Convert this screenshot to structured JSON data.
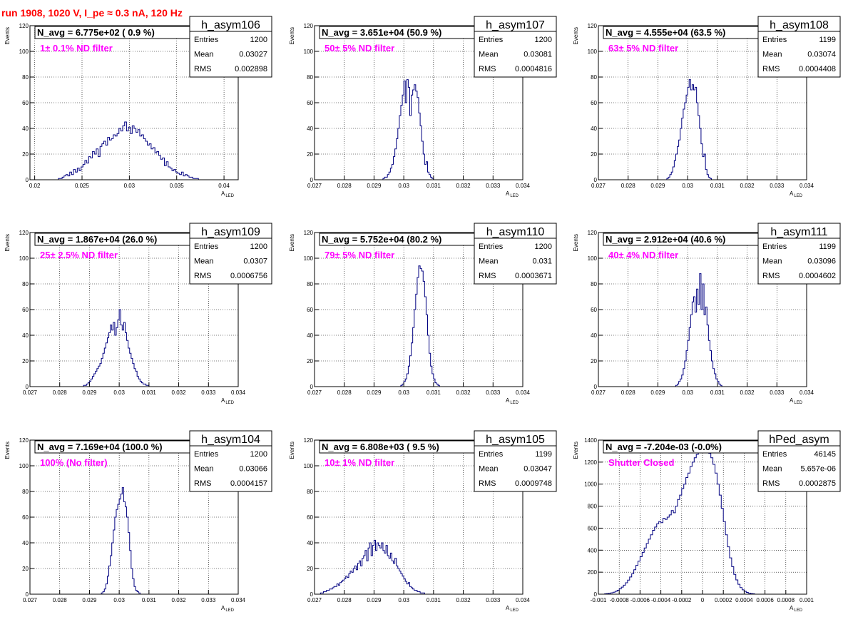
{
  "run_title": "run 1908,  1020 V, I_pe ≈ 0.3 nA, 120 Hz",
  "colors": {
    "title": "#ff0000",
    "annotation": "#ff00ff",
    "histogram": "#000080",
    "grid": "#000000"
  },
  "chart_data": [
    {
      "type": "histogram",
      "name": "h_asym106",
      "header": "N_avg = 6.775e+02 ( 0.9 %)",
      "annotation": "1± 0.1% ND filter",
      "stats": [
        [
          "Entries",
          "1200"
        ],
        [
          "Mean",
          "0.03027"
        ],
        [
          "RMS",
          "0.002898"
        ]
      ],
      "ylabel": "Events",
      "xlabel_main": "A",
      "xlabel_sub": "LED",
      "xlim": [
        0.0195,
        0.0415
      ],
      "ylim": [
        0,
        120
      ],
      "xticks": [
        0.02,
        0.025,
        0.03,
        0.035,
        0.04
      ],
      "xticklabels": [
        "0.02",
        "0.025",
        "0.03",
        "0.035",
        "0.04"
      ],
      "yticks": [
        0,
        20,
        40,
        60,
        80,
        100,
        120
      ],
      "yticklabels": [
        "0",
        "20",
        "40",
        "60",
        "80",
        "100",
        "120"
      ],
      "grid": true,
      "bins_start": 0.0225,
      "bin_width": 0.0002,
      "counts": [
        1,
        1,
        2,
        3,
        4,
        3,
        6,
        4,
        8,
        6,
        9,
        7,
        10,
        12,
        15,
        13,
        18,
        17,
        22,
        20,
        24,
        18,
        26,
        28,
        30,
        27,
        33,
        31,
        32,
        35,
        34,
        36,
        40,
        38,
        42,
        45,
        38,
        41,
        36,
        42,
        40,
        37,
        39,
        34,
        35,
        32,
        30,
        27,
        28,
        24,
        25,
        21,
        22,
        19,
        16,
        17,
        11,
        14,
        10,
        9,
        7,
        8,
        6,
        5,
        4,
        6,
        3,
        4,
        3,
        2,
        2,
        1,
        1,
        1
      ]
    },
    {
      "type": "histogram",
      "name": "h_asym107",
      "header": "N_avg = 3.651e+04 (50.9 %)",
      "annotation": "50± 5% ND filter",
      "stats": [
        [
          "Entries",
          "1200"
        ],
        [
          "Mean",
          "0.03081"
        ],
        [
          "RMS",
          "0.0004816"
        ]
      ],
      "ylabel": "Events",
      "xlabel_main": "A",
      "xlabel_sub": "LED",
      "xlim": [
        0.027,
        0.034
      ],
      "ylim": [
        0,
        120
      ],
      "xticks": [
        0.027,
        0.028,
        0.029,
        0.03,
        0.031,
        0.032,
        0.033,
        0.034
      ],
      "xticklabels": [
        "0.027",
        "0.028",
        "0.029",
        "0.03",
        "0.031",
        "0.032",
        "0.033",
        "0.034"
      ],
      "yticks": [
        0,
        20,
        40,
        60,
        80,
        100,
        120
      ],
      "yticklabels": [
        "0",
        "20",
        "40",
        "60",
        "80",
        "100",
        "120"
      ],
      "grid": true,
      "bins_start": 0.0293,
      "bin_width": 5e-05,
      "counts": [
        1,
        2,
        2,
        4,
        6,
        9,
        12,
        18,
        24,
        32,
        40,
        50,
        58,
        66,
        77,
        60,
        78,
        72,
        50,
        66,
        70,
        74,
        69,
        64,
        52,
        42,
        30,
        20,
        12,
        14,
        6,
        4,
        2,
        1
      ]
    },
    {
      "type": "histogram",
      "name": "h_asym108",
      "header": "N_avg = 4.555e+04 (63.5 %)",
      "annotation": "63± 5% ND filter",
      "stats": [
        [
          "Entries",
          "1199"
        ],
        [
          "Mean",
          "0.03074"
        ],
        [
          "RMS",
          "0.0004408"
        ]
      ],
      "ylabel": "Events",
      "xlabel_main": "A",
      "xlabel_sub": "LED",
      "xlim": [
        0.027,
        0.034
      ],
      "ylim": [
        0,
        120
      ],
      "xticks": [
        0.027,
        0.028,
        0.029,
        0.03,
        0.031,
        0.032,
        0.033,
        0.034
      ],
      "xticklabels": [
        "0.027",
        "0.028",
        "0.029",
        "0.03",
        "0.031",
        "0.032",
        "0.033",
        "0.034"
      ],
      "yticks": [
        0,
        20,
        40,
        60,
        80,
        100,
        120
      ],
      "yticklabels": [
        "0",
        "20",
        "40",
        "60",
        "80",
        "100",
        "120"
      ],
      "grid": true,
      "bins_start": 0.0293,
      "bin_width": 5e-05,
      "counts": [
        1,
        2,
        4,
        6,
        10,
        15,
        20,
        26,
        31,
        40,
        48,
        55,
        60,
        66,
        72,
        78,
        70,
        74,
        70,
        72,
        60,
        50,
        40,
        28,
        18,
        20,
        8,
        4,
        2,
        1
      ]
    },
    {
      "type": "histogram",
      "name": "h_asym109",
      "header": "N_avg = 1.867e+04 (26.0 %)",
      "annotation": "25± 2.5% ND filter",
      "stats": [
        [
          "Entries",
          "1200"
        ],
        [
          "Mean",
          "0.0307"
        ],
        [
          "RMS",
          "0.0006756"
        ]
      ],
      "ylabel": "Events",
      "xlabel_main": "A",
      "xlabel_sub": "LED",
      "xlim": [
        0.027,
        0.034
      ],
      "ylim": [
        0,
        120
      ],
      "xticks": [
        0.027,
        0.028,
        0.029,
        0.03,
        0.031,
        0.032,
        0.033,
        0.034
      ],
      "xticklabels": [
        "0.027",
        "0.028",
        "0.029",
        "0.03",
        "0.031",
        "0.032",
        "0.033",
        "0.034"
      ],
      "yticks": [
        0,
        20,
        40,
        60,
        80,
        100,
        120
      ],
      "yticklabels": [
        "0",
        "20",
        "40",
        "60",
        "80",
        "100",
        "120"
      ],
      "grid": true,
      "bins_start": 0.0288,
      "bin_width": 5e-05,
      "counts": [
        1,
        1,
        2,
        3,
        4,
        6,
        8,
        10,
        12,
        14,
        16,
        18,
        22,
        26,
        30,
        34,
        38,
        42,
        48,
        44,
        50,
        40,
        46,
        52,
        60,
        48,
        44,
        50,
        42,
        36,
        30,
        26,
        22,
        18,
        14,
        12,
        8,
        6,
        4,
        3,
        2,
        2,
        1,
        1
      ]
    },
    {
      "type": "histogram",
      "name": "h_asym110",
      "header": "N_avg = 5.752e+04 (80.2 %)",
      "annotation": "79± 5% ND filter",
      "stats": [
        [
          "Entries",
          "1200"
        ],
        [
          "Mean",
          "0.031"
        ],
        [
          "RMS",
          "0.0003671"
        ]
      ],
      "ylabel": "Events",
      "xlabel_main": "A",
      "xlabel_sub": "LED",
      "xlim": [
        0.027,
        0.034
      ],
      "ylim": [
        0,
        120
      ],
      "xticks": [
        0.027,
        0.028,
        0.029,
        0.03,
        0.031,
        0.032,
        0.033,
        0.034
      ],
      "xticklabels": [
        "0.027",
        "0.028",
        "0.029",
        "0.03",
        "0.031",
        "0.032",
        "0.033",
        "0.034"
      ],
      "yticks": [
        0,
        20,
        40,
        60,
        80,
        100,
        120
      ],
      "yticklabels": [
        "0",
        "20",
        "40",
        "60",
        "80",
        "100",
        "120"
      ],
      "grid": true,
      "bins_start": 0.0299,
      "bin_width": 5e-05,
      "counts": [
        1,
        2,
        4,
        6,
        10,
        16,
        24,
        34,
        46,
        60,
        72,
        85,
        94,
        92,
        90,
        82,
        70,
        56,
        40,
        26,
        16,
        10,
        6,
        3,
        2,
        1
      ]
    },
    {
      "type": "histogram",
      "name": "h_asym111",
      "header": "N_avg = 2.912e+04 (40.6 %)",
      "annotation": "40± 4% ND filter",
      "stats": [
        [
          "Entries",
          "1199"
        ],
        [
          "Mean",
          "0.03096"
        ],
        [
          "RMS",
          "0.0004602"
        ]
      ],
      "ylabel": "Events",
      "xlabel_main": "A",
      "xlabel_sub": "LED",
      "xlim": [
        0.027,
        0.034
      ],
      "ylim": [
        0,
        120
      ],
      "xticks": [
        0.027,
        0.028,
        0.029,
        0.03,
        0.031,
        0.032,
        0.033,
        0.034
      ],
      "xticklabels": [
        "0.027",
        "0.028",
        "0.029",
        "0.03",
        "0.031",
        "0.032",
        "0.033",
        "0.034"
      ],
      "yticks": [
        0,
        20,
        40,
        60,
        80,
        100,
        120
      ],
      "yticklabels": [
        "0",
        "20",
        "40",
        "60",
        "80",
        "100",
        "120"
      ],
      "grid": true,
      "bins_start": 0.0296,
      "bin_width": 5e-05,
      "counts": [
        1,
        2,
        4,
        6,
        9,
        14,
        20,
        28,
        36,
        46,
        56,
        66,
        70,
        58,
        76,
        64,
        88,
        60,
        80,
        56,
        62,
        48,
        36,
        28,
        20,
        14,
        10,
        6,
        4,
        2,
        1
      ]
    },
    {
      "type": "histogram",
      "name": "h_asym104",
      "header": "N_avg = 7.169e+04 (100.0 %)",
      "annotation": "100% (No filter)",
      "stats": [
        [
          "Entries",
          "1200"
        ],
        [
          "Mean",
          "0.03066"
        ],
        [
          "RMS",
          "0.0004157"
        ]
      ],
      "ylabel": "Events",
      "xlabel_main": "A",
      "xlabel_sub": "LED",
      "xlim": [
        0.027,
        0.034
      ],
      "ylim": [
        0,
        120
      ],
      "xticks": [
        0.027,
        0.028,
        0.029,
        0.03,
        0.031,
        0.032,
        0.033,
        0.034
      ],
      "xticklabels": [
        "0.027",
        "0.028",
        "0.029",
        "0.03",
        "0.031",
        "0.032",
        "0.033",
        "0.034"
      ],
      "yticks": [
        0,
        20,
        40,
        60,
        80,
        100,
        120
      ],
      "yticklabels": [
        "0",
        "20",
        "40",
        "60",
        "80",
        "100",
        "120"
      ],
      "grid": true,
      "bins_start": 0.0294,
      "bin_width": 5e-05,
      "counts": [
        1,
        2,
        4,
        8,
        14,
        22,
        30,
        40,
        50,
        60,
        66,
        70,
        74,
        78,
        83,
        72,
        68,
        60,
        48,
        34,
        20,
        12,
        6,
        3,
        2,
        1
      ]
    },
    {
      "type": "histogram",
      "name": "h_asym105",
      "header": "N_avg = 6.808e+03 ( 9.5 %)",
      "annotation": "10± 1% ND filter",
      "stats": [
        [
          "Entries",
          "1199"
        ],
        [
          "Mean",
          "0.03047"
        ],
        [
          "RMS",
          "0.0009748"
        ]
      ],
      "ylabel": "Events",
      "xlabel_main": "A",
      "xlabel_sub": "LED",
      "xlim": [
        0.027,
        0.034
      ],
      "ylim": [
        0,
        120
      ],
      "xticks": [
        0.027,
        0.028,
        0.029,
        0.03,
        0.031,
        0.032,
        0.033,
        0.034
      ],
      "xticklabels": [
        "0.027",
        "0.028",
        "0.029",
        "0.03",
        "0.031",
        "0.032",
        "0.033",
        "0.034"
      ],
      "yticks": [
        0,
        20,
        40,
        60,
        80,
        100,
        120
      ],
      "yticklabels": [
        "0",
        "20",
        "40",
        "60",
        "80",
        "100",
        "120"
      ],
      "grid": true,
      "bins_start": 0.0272,
      "bin_width": 5e-05,
      "counts": [
        1,
        1,
        2,
        2,
        3,
        3,
        4,
        4,
        5,
        6,
        6,
        8,
        7,
        9,
        10,
        11,
        12,
        14,
        13,
        16,
        18,
        17,
        20,
        22,
        19,
        24,
        26,
        22,
        28,
        30,
        34,
        26,
        36,
        40,
        30,
        38,
        42,
        34,
        40,
        38,
        36,
        40,
        34,
        32,
        38,
        30,
        28,
        32,
        26,
        24,
        28,
        22,
        20,
        18,
        16,
        14,
        12,
        10,
        8,
        9,
        6,
        5,
        4,
        3,
        3,
        2,
        2,
        1,
        1,
        1
      ]
    },
    {
      "type": "histogram",
      "name": "hPed_asym",
      "header": "N_avg = -7.204e-03 (-0.0%)",
      "annotation": "Shutter Closed",
      "stats": [
        [
          "Entries",
          "46145"
        ],
        [
          "Mean",
          "5.657e-06"
        ],
        [
          "RMS",
          "0.0002875"
        ]
      ],
      "ylabel": "Events",
      "xlabel_main": "A",
      "xlabel_sub": "LED",
      "xlim": [
        -0.001,
        0.001
      ],
      "ylim": [
        0,
        1400
      ],
      "xticks": [
        -0.001,
        -0.0008,
        -0.0006,
        -0.0004,
        -0.0002,
        0,
        0.0002,
        0.0004,
        0.0006,
        0.0008,
        0.001
      ],
      "xticklabels": [
        "-0.001",
        "-0.0008",
        "-0.0006",
        "-0.0004",
        "-0.0002",
        "0",
        "0.0002",
        "0.0004",
        "0.0006",
        "0.0008",
        "0.001"
      ],
      "yticks": [
        0,
        200,
        400,
        600,
        800,
        1000,
        1200,
        1400
      ],
      "yticklabels": [
        "0",
        "200",
        "400",
        "600",
        "800",
        "1000",
        "1200",
        "1400"
      ],
      "grid": true,
      "bins_start": -0.00094,
      "bin_width": 2e-05,
      "counts": [
        4,
        6,
        8,
        12,
        18,
        26,
        36,
        48,
        64,
        82,
        104,
        128,
        156,
        186,
        222,
        262,
        300,
        340,
        380,
        420,
        460,
        500,
        540,
        580,
        610,
        640,
        660,
        650,
        690,
        680,
        700,
        720,
        760,
        740,
        800,
        860,
        900,
        960,
        1000,
        1060,
        1100,
        1160,
        1200,
        1240,
        1270,
        1300,
        1320,
        1340,
        1310,
        1330,
        1280,
        1240,
        1180,
        1100,
        1000,
        900,
        780,
        660,
        540,
        430,
        330,
        250,
        180,
        130,
        90,
        60,
        40,
        26,
        16,
        10,
        6,
        4
      ]
    }
  ]
}
